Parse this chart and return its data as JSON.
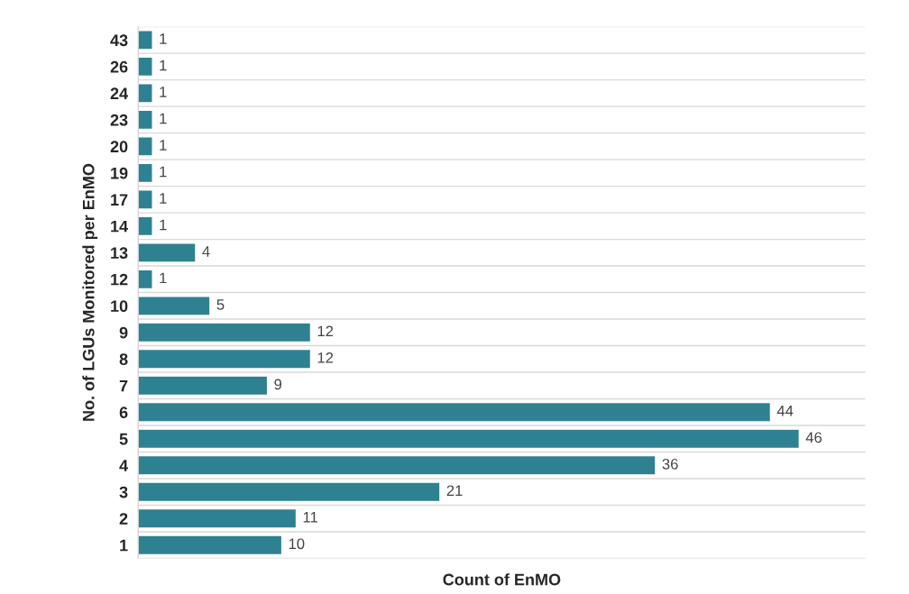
{
  "chart_data": {
    "type": "bar",
    "orientation": "horizontal",
    "xlabel": "Count of EnMO",
    "ylabel": "No. of LGUs Monitored per EnMO",
    "categories": [
      "43",
      "26",
      "24",
      "23",
      "20",
      "19",
      "17",
      "14",
      "13",
      "12",
      "10",
      "9",
      "8",
      "7",
      "6",
      "5",
      "4",
      "3",
      "2",
      "1"
    ],
    "values": [
      1,
      1,
      1,
      1,
      1,
      1,
      1,
      1,
      4,
      1,
      5,
      12,
      12,
      9,
      44,
      46,
      36,
      21,
      11,
      10
    ],
    "color": "#2e8190",
    "data_labels": true,
    "grid": "y",
    "tick_labels": "y",
    "legend": false
  }
}
